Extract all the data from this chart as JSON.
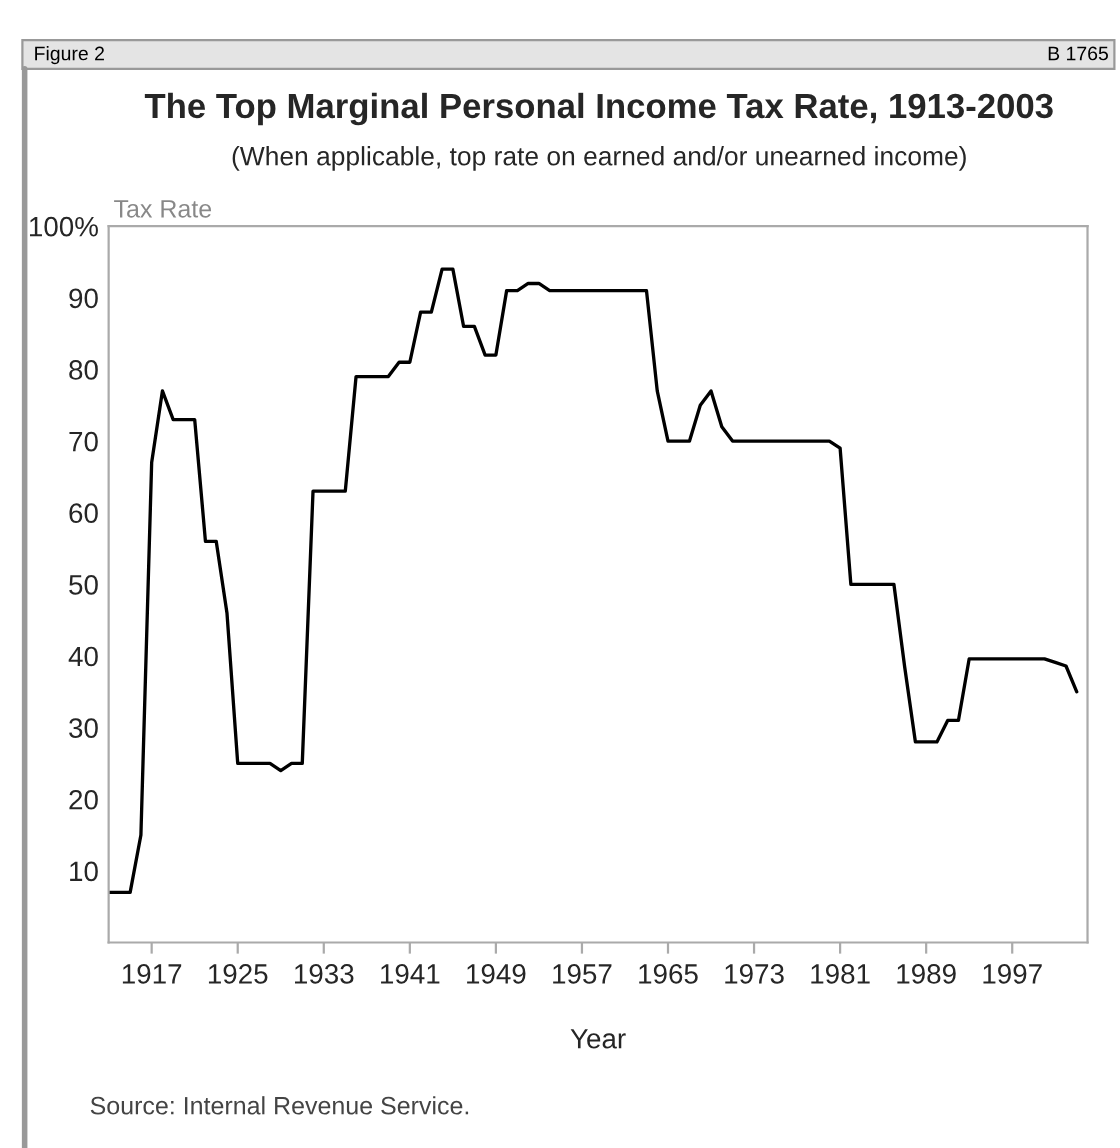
{
  "chart_data": {
    "type": "line",
    "title": "The Top Marginal Personal Income Tax Rate, 1913-2003",
    "subtitle": "(When applicable, top rate on earned and/or unearned income)",
    "xlabel": "Year",
    "ylabel": "Tax Rate",
    "annotations": [
      "Figure 2",
      "B 1765",
      "Source: Internal Revenue Service."
    ],
    "series": [
      {
        "color": "#000000",
        "x": [
          1913,
          1915,
          1916,
          1917,
          1918,
          1919,
          1921,
          1922,
          1923,
          1924,
          1925,
          1928,
          1929,
          1930,
          1931,
          1932,
          1935,
          1936,
          1939,
          1940,
          1941,
          1942,
          1943,
          1944,
          1945,
          1946,
          1947,
          1948,
          1949,
          1950,
          1951,
          1952,
          1953,
          1954,
          1963,
          1964,
          1965,
          1967,
          1968,
          1969,
          1970,
          1971,
          1980,
          1981,
          1982,
          1986,
          1987,
          1988,
          1990,
          1991,
          1992,
          1993,
          2000,
          2001,
          2002,
          2003
        ],
        "values": [
          7,
          7,
          15,
          67,
          77,
          73,
          73,
          56,
          56,
          46,
          25,
          25,
          24,
          25,
          25,
          63,
          63,
          79,
          79,
          81,
          81,
          88,
          88,
          94,
          94,
          86,
          86,
          82,
          82,
          91,
          91,
          92,
          92,
          91,
          91,
          77,
          70,
          70,
          75,
          77,
          72,
          70,
          70,
          69,
          50,
          50,
          38.5,
          28,
          28,
          31,
          31,
          39.6,
          39.6,
          39.1,
          38.6,
          35
        ]
      }
    ],
    "xlim": [
      1913,
      2004
    ],
    "xticks": [
      1917,
      1925,
      1933,
      1941,
      1949,
      1957,
      1965,
      1973,
      1981,
      1989,
      1997
    ],
    "ylim": [
      0,
      100
    ],
    "yticks": [
      10,
      20,
      30,
      40,
      50,
      60,
      70,
      80,
      90,
      {
        "value": 100,
        "label": "100%"
      }
    ],
    "grid": false,
    "legend": false,
    "line_style": "solid",
    "marker": "none"
  }
}
